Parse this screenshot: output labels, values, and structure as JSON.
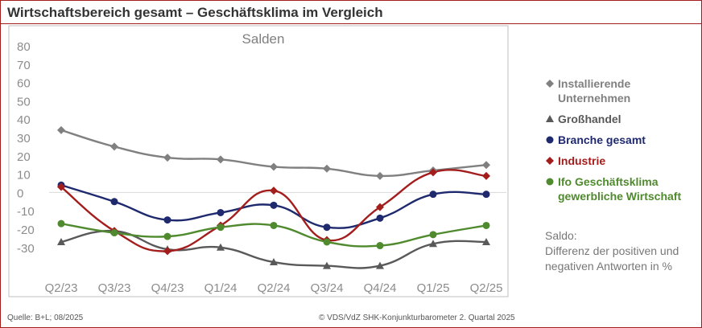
{
  "header": {
    "title": "Wirtschaftsbereich gesamt – Geschäftsklima im Vergleich"
  },
  "footer": {
    "source": "Quelle: B+L; 08/2025",
    "copyright": "© VDS/VdZ SHK-Konjunkturbarometer 2. Quartal 2025"
  },
  "note": {
    "title": "Saldo:",
    "text": "Differenz der positiven und negativen Antworten in %"
  },
  "colors": {
    "frame": "#a31d1d",
    "grid": "#d9d9d9",
    "axis_text": "#8c8c8c"
  },
  "chart_data": {
    "type": "line",
    "title": "Salden",
    "categories": [
      "Q2/23",
      "Q3/23",
      "Q4/23",
      "Q1/24",
      "Q2/24",
      "Q3/24",
      "Q4/24",
      "Q1/25",
      "Q2/25"
    ],
    "y_ticks": [
      80,
      70,
      60,
      50,
      40,
      30,
      20,
      10,
      0,
      -10,
      -20,
      -30
    ],
    "ylim": [
      -40,
      80
    ],
    "grid": false,
    "legend_position": "right",
    "series": [
      {
        "name": "Installierende Unternehmen",
        "marker": "diamond",
        "color": "#808080",
        "values": [
          34,
          25,
          19,
          18,
          14,
          13,
          9,
          12,
          15
        ]
      },
      {
        "name": "Großhandel",
        "marker": "triangle",
        "color": "#595959",
        "values": [
          -27,
          -21,
          -31,
          -30,
          -38,
          -40,
          -40,
          -28,
          -27
        ]
      },
      {
        "name": "Branche gesamt",
        "marker": "circle",
        "color": "#1f2a6e",
        "values": [
          4,
          -5,
          -15,
          -11,
          -7,
          -19,
          -14,
          -1,
          -1
        ]
      },
      {
        "name": "Industrie",
        "marker": "diamond",
        "color": "#a31d1d",
        "values": [
          3,
          -21,
          -32,
          -18,
          1,
          -26,
          -8,
          11,
          9
        ]
      },
      {
        "name": "Ifo Geschäftsklima gewerbliche Wirtschaft",
        "marker": "circle",
        "color": "#4f8a2e",
        "values": [
          -17,
          -22,
          -24,
          -19,
          -18,
          -27,
          -29,
          -23,
          -18
        ]
      }
    ]
  }
}
